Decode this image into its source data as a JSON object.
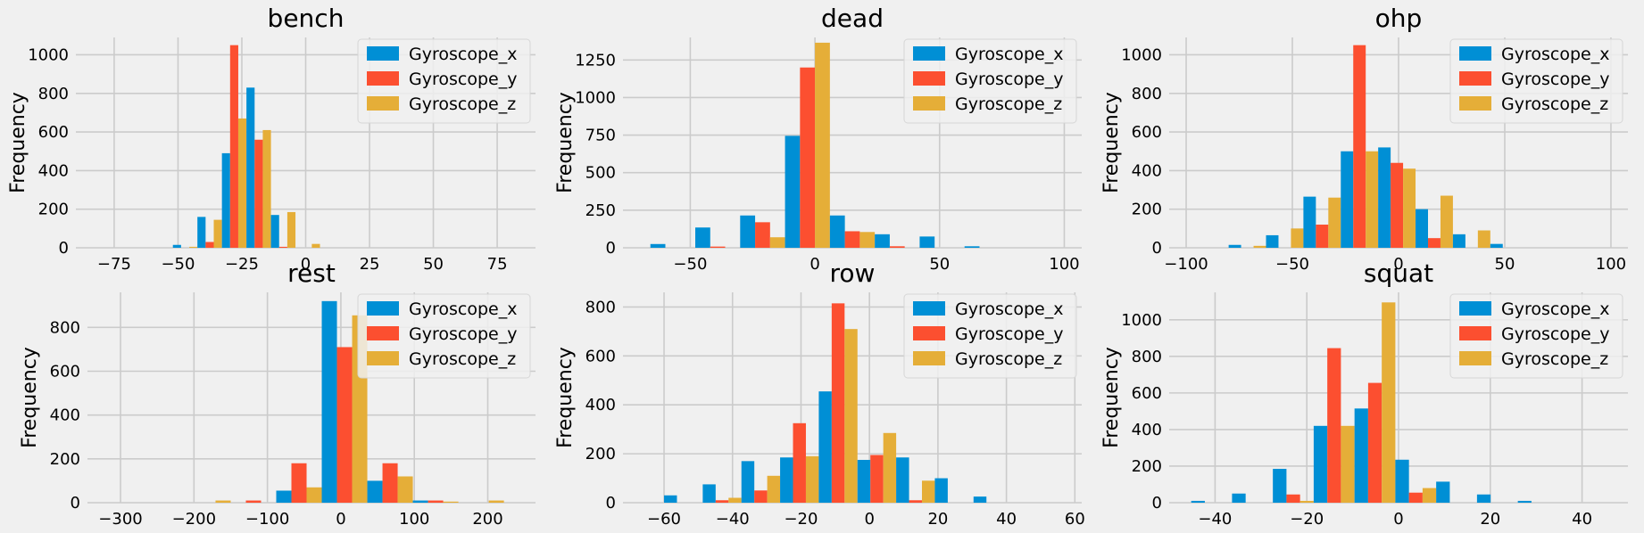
{
  "figure": {
    "background": "#f0f0f0",
    "grid_color": "#cbcbcb"
  },
  "legend_labels": [
    "Gyroscope_x",
    "Gyroscope_y",
    "Gyroscope_z"
  ],
  "series_colors": [
    "#008fd5",
    "#fc4f30",
    "#e5ae38"
  ],
  "chart_data": [
    {
      "type": "bar",
      "title": "bench",
      "xlabel": "",
      "ylabel": "Frequency",
      "xlim": [
        -90,
        90
      ],
      "ylim": [
        0,
        1090
      ],
      "xticks": [
        -75,
        -50,
        -25,
        0,
        25,
        50,
        75
      ],
      "yticks": [
        0,
        200,
        400,
        600,
        800,
        1000
      ],
      "bin_width": 9.6,
      "x0": -52,
      "legend": "upper right",
      "grid": true,
      "series": [
        {
          "name": "Gyroscope_x",
          "values": [
            15,
            160,
            490,
            830,
            170,
            0,
            0
          ]
        },
        {
          "name": "Gyroscope_y",
          "values": [
            0,
            30,
            1050,
            560,
            5,
            0,
            0
          ]
        },
        {
          "name": "Gyroscope_z",
          "values": [
            5,
            145,
            670,
            610,
            185,
            20,
            0
          ]
        }
      ]
    },
    {
      "type": "bar",
      "title": "dead",
      "xlabel": "",
      "ylabel": "Frequency",
      "xlim": [
        -77,
        107
      ],
      "ylim": [
        0,
        1400
      ],
      "xticks": [
        -50,
        0,
        50,
        100
      ],
      "yticks": [
        0,
        250,
        500,
        750,
        1000,
        1250
      ],
      "bin_width": 18,
      "x0": -66,
      "legend": "upper right",
      "grid": true,
      "series": [
        {
          "name": "Gyroscope_x",
          "values": [
            25,
            135,
            215,
            745,
            215,
            90,
            75,
            10
          ]
        },
        {
          "name": "Gyroscope_y",
          "values": [
            0,
            8,
            170,
            1200,
            110,
            10,
            0,
            0
          ]
        },
        {
          "name": "Gyroscope_z",
          "values": [
            0,
            0,
            70,
            1365,
            105,
            0,
            0,
            0
          ]
        }
      ]
    },
    {
      "type": "bar",
      "title": "ohp",
      "xlabel": "",
      "ylabel": "Frequency",
      "xlim": [
        -108,
        108
      ],
      "ylim": [
        0,
        1090
      ],
      "xticks": [
        -100,
        -50,
        0,
        50,
        100
      ],
      "yticks": [
        0,
        200,
        400,
        600,
        800,
        1000
      ],
      "bin_width": 17.6,
      "x0": -80,
      "legend": "upper right",
      "grid": true,
      "series": [
        {
          "name": "Gyroscope_x",
          "values": [
            15,
            65,
            265,
            500,
            520,
            200,
            70,
            20
          ]
        },
        {
          "name": "Gyroscope_y",
          "values": [
            0,
            0,
            120,
            1050,
            440,
            50,
            0,
            0
          ]
        },
        {
          "name": "Gyroscope_z",
          "values": [
            10,
            100,
            260,
            500,
            410,
            270,
            90,
            0
          ]
        }
      ]
    },
    {
      "type": "bar",
      "title": "rest",
      "xlabel": "",
      "ylabel": "Frequency",
      "xlim": [
        -345,
        265
      ],
      "ylim": [
        0,
        960
      ],
      "xticks": [
        -300,
        -200,
        -100,
        0,
        100,
        200
      ],
      "yticks": [
        0,
        200,
        400,
        600,
        800
      ],
      "bin_width": 62,
      "x0": -212,
      "legend": "upper right",
      "grid": true,
      "series": [
        {
          "name": "Gyroscope_x",
          "values": [
            0,
            0,
            55,
            920,
            100,
            10,
            0
          ]
        },
        {
          "name": "Gyroscope_y",
          "values": [
            0,
            10,
            180,
            710,
            180,
            10,
            0
          ]
        },
        {
          "name": "Gyroscope_z",
          "values": [
            10,
            0,
            70,
            855,
            120,
            5,
            10
          ]
        }
      ]
    },
    {
      "type": "bar",
      "title": "row",
      "xlabel": "",
      "ylabel": "Frequency",
      "xlim": [
        -72,
        62
      ],
      "ylim": [
        0,
        860
      ],
      "xticks": [
        -60,
        -40,
        -20,
        0,
        20,
        40,
        60
      ],
      "yticks": [
        0,
        200,
        400,
        600,
        800
      ],
      "bin_width": 11.3,
      "x0": -60,
      "legend": "upper right",
      "grid": true,
      "series": [
        {
          "name": "Gyroscope_x",
          "values": [
            30,
            75,
            170,
            185,
            455,
            175,
            185,
            100,
            25
          ]
        },
        {
          "name": "Gyroscope_y",
          "values": [
            0,
            10,
            50,
            325,
            815,
            195,
            10,
            0,
            0
          ]
        },
        {
          "name": "Gyroscope_z",
          "values": [
            0,
            20,
            110,
            190,
            710,
            285,
            90,
            0,
            0
          ]
        }
      ]
    },
    {
      "type": "bar",
      "title": "squat",
      "xlabel": "",
      "ylabel": "Frequency",
      "xlim": [
        -50,
        50
      ],
      "ylim": [
        0,
        1150
      ],
      "xticks": [
        -40,
        -20,
        0,
        20,
        40
      ],
      "yticks": [
        0,
        200,
        400,
        600,
        800,
        1000
      ],
      "bin_width": 8.9,
      "x0": -45.2,
      "legend": "upper right",
      "grid": true,
      "series": [
        {
          "name": "Gyroscope_x",
          "values": [
            10,
            50,
            185,
            420,
            515,
            235,
            115,
            45,
            10
          ]
        },
        {
          "name": "Gyroscope_y",
          "values": [
            0,
            0,
            45,
            845,
            655,
            55,
            0,
            0,
            0
          ]
        },
        {
          "name": "Gyroscope_z",
          "values": [
            0,
            0,
            10,
            420,
            1095,
            80,
            0,
            0,
            0
          ]
        }
      ]
    }
  ]
}
